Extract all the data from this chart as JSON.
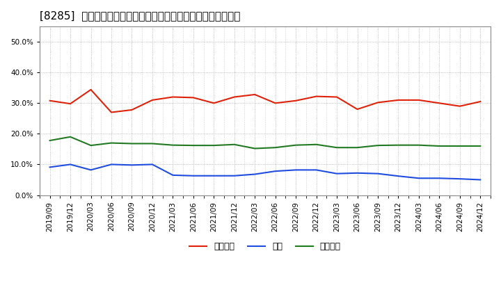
{
  "title": "[8285]  売上債権、在庫、買入債務の総資産に対する比率の推移",
  "x_labels": [
    "2019/09",
    "2019/12",
    "2020/03",
    "2020/06",
    "2020/09",
    "2020/12",
    "2021/03",
    "2021/06",
    "2021/09",
    "2021/12",
    "2022/03",
    "2022/06",
    "2022/09",
    "2022/12",
    "2023/03",
    "2023/06",
    "2023/09",
    "2023/12",
    "2024/03",
    "2024/06",
    "2024/09",
    "2024/12"
  ],
  "receivables": [
    0.308,
    0.298,
    0.344,
    0.27,
    0.278,
    0.31,
    0.32,
    0.318,
    0.3,
    0.32,
    0.328,
    0.3,
    0.308,
    0.322,
    0.32,
    0.28,
    0.302,
    0.31,
    0.31,
    0.3,
    0.29,
    0.305
  ],
  "inventory": [
    0.091,
    0.1,
    0.082,
    0.1,
    0.098,
    0.1,
    0.065,
    0.063,
    0.063,
    0.063,
    0.068,
    0.078,
    0.082,
    0.082,
    0.07,
    0.072,
    0.07,
    0.062,
    0.055,
    0.055,
    0.053,
    0.05
  ],
  "payables": [
    0.178,
    0.19,
    0.162,
    0.17,
    0.168,
    0.168,
    0.163,
    0.162,
    0.162,
    0.165,
    0.152,
    0.155,
    0.163,
    0.165,
    0.155,
    0.155,
    0.162,
    0.163,
    0.163,
    0.16,
    0.16,
    0.16
  ],
  "receivables_color": "#e0210a",
  "inventory_color": "#1f4de0",
  "payables_color": "#217a21",
  "ylim": [
    0.0,
    0.55
  ],
  "yticks": [
    0.0,
    0.1,
    0.2,
    0.3,
    0.4,
    0.5
  ],
  "legend_labels": [
    "売上債権",
    "在庫",
    "買入債務"
  ],
  "bg_color": "#ffffff",
  "plot_bg_color": "#ffffff",
  "grid_color": "#aaaaaa",
  "title_fontsize": 11,
  "axis_fontsize": 7.5,
  "legend_fontsize": 9
}
